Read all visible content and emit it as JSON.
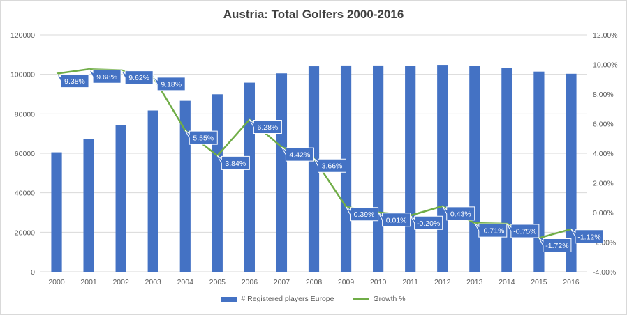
{
  "chart_data": {
    "type": "bar",
    "title": "Austria: Total Golfers 2000-2016",
    "xlabel": "",
    "ylabel": "",
    "categories": [
      "2000",
      "2001",
      "2002",
      "2003",
      "2004",
      "2005",
      "2006",
      "2007",
      "2008",
      "2009",
      "2010",
      "2011",
      "2012",
      "2013",
      "2014",
      "2015",
      "2016"
    ],
    "series": [
      {
        "name": "# Registered players Europe",
        "type": "bar",
        "axis": "left",
        "color": "#4472c4",
        "values": [
          60500,
          67100,
          74200,
          81700,
          86600,
          89900,
          95800,
          100500,
          104100,
          104500,
          104500,
          104300,
          104800,
          104200,
          103200,
          101400,
          100300
        ]
      },
      {
        "name": "Growth %",
        "type": "line",
        "axis": "right",
        "color": "#70ad47",
        "values": [
          9.38,
          9.68,
          9.62,
          9.18,
          5.55,
          3.84,
          6.28,
          4.42,
          3.66,
          0.39,
          0.01,
          -0.2,
          0.43,
          -0.71,
          -0.75,
          -1.72,
          -1.12
        ],
        "labels": [
          "9.38%",
          "9.68%",
          "9.62%",
          "9.18%",
          "5.55%",
          "3.84%",
          "6.28%",
          "4.42%",
          "3.66%",
          "0.39%",
          "0.01%",
          "-0.20%",
          "0.43%",
          "-0.71%",
          "-0.75%",
          "-1.72%",
          "-1.12%"
        ]
      }
    ],
    "ylim_left": [
      0,
      120000
    ],
    "yticks_left": [
      "0",
      "20000",
      "40000",
      "60000",
      "80000",
      "100000",
      "120000"
    ],
    "ylim_right": [
      -4,
      12
    ],
    "yticks_right": [
      "-4.00%",
      "-2.00%",
      "0.00%",
      "2.00%",
      "4.00%",
      "6.00%",
      "8.00%",
      "10.00%",
      "12.00%"
    ],
    "grid": true,
    "legend_position": "bottom"
  }
}
